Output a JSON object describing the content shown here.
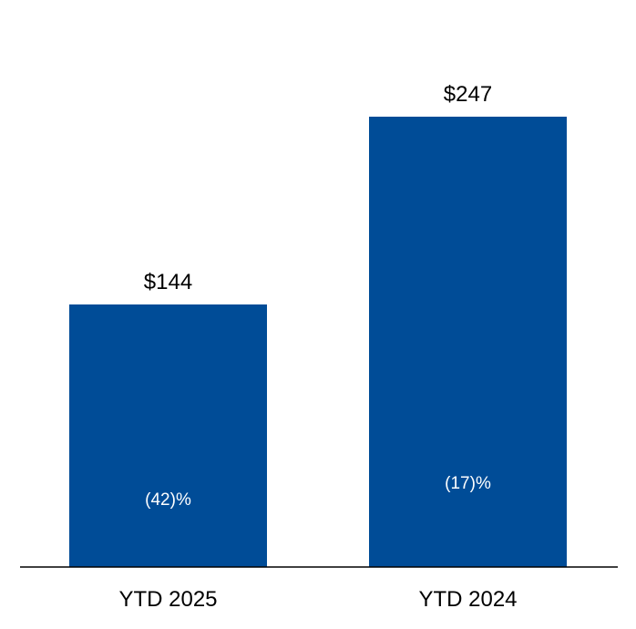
{
  "chart_data": {
    "type": "bar",
    "categories": [
      "YTD 2025",
      "YTD 2024"
    ],
    "values": [
      144,
      247
    ],
    "value_labels": [
      "$144",
      "$247"
    ],
    "inner_labels": [
      "(42)%",
      "(17)%"
    ],
    "ylim": [
      0,
      300
    ],
    "grid": false,
    "bar_color": "#004C97",
    "axis_color": "#000000"
  }
}
